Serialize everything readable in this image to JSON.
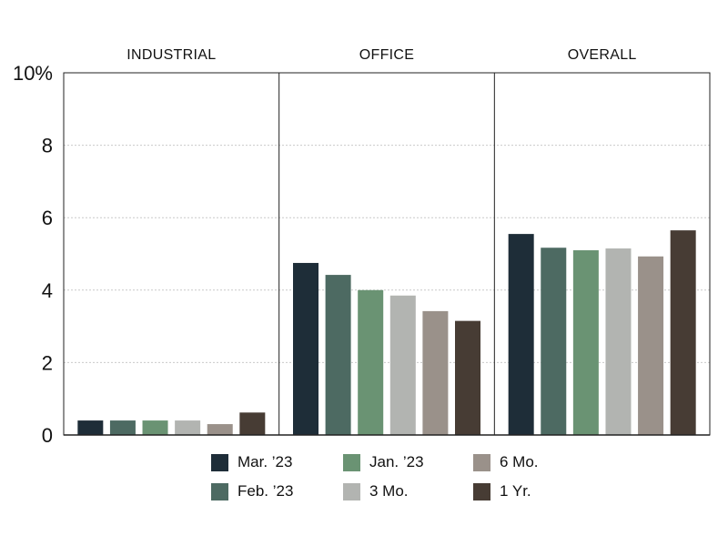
{
  "chart_data": {
    "type": "bar",
    "title": "",
    "ylim": [
      0,
      10
    ],
    "y_ticks": [
      {
        "value": 0,
        "label": "0"
      },
      {
        "value": 2,
        "label": "2"
      },
      {
        "value": 4,
        "label": "4"
      },
      {
        "value": 6,
        "label": "6"
      },
      {
        "value": 8,
        "label": "8"
      },
      {
        "value": 10,
        "label": "10%"
      }
    ],
    "categories": [
      "INDUSTRIAL",
      "OFFICE",
      "OVERALL"
    ],
    "series": [
      {
        "name": "Mar. ’23",
        "color": "#1e2d38",
        "values": [
          0.4,
          4.75,
          5.55
        ]
      },
      {
        "name": "Feb. ’23",
        "color": "#4d6a62",
        "values": [
          0.4,
          4.42,
          5.17
        ]
      },
      {
        "name": "Jan. ’23",
        "color": "#6a9373",
        "values": [
          0.4,
          4.0,
          5.1
        ]
      },
      {
        "name": "3 Mo.",
        "color": "#b2b4b1",
        "values": [
          0.4,
          3.85,
          5.15
        ]
      },
      {
        "name": "6 Mo.",
        "color": "#9a918a",
        "values": [
          0.3,
          3.42,
          4.93
        ]
      },
      {
        "name": "1 Yr.",
        "color": "#473c34",
        "values": [
          0.62,
          3.15,
          5.65
        ]
      }
    ],
    "grid": true,
    "legend_position": "bottom"
  }
}
